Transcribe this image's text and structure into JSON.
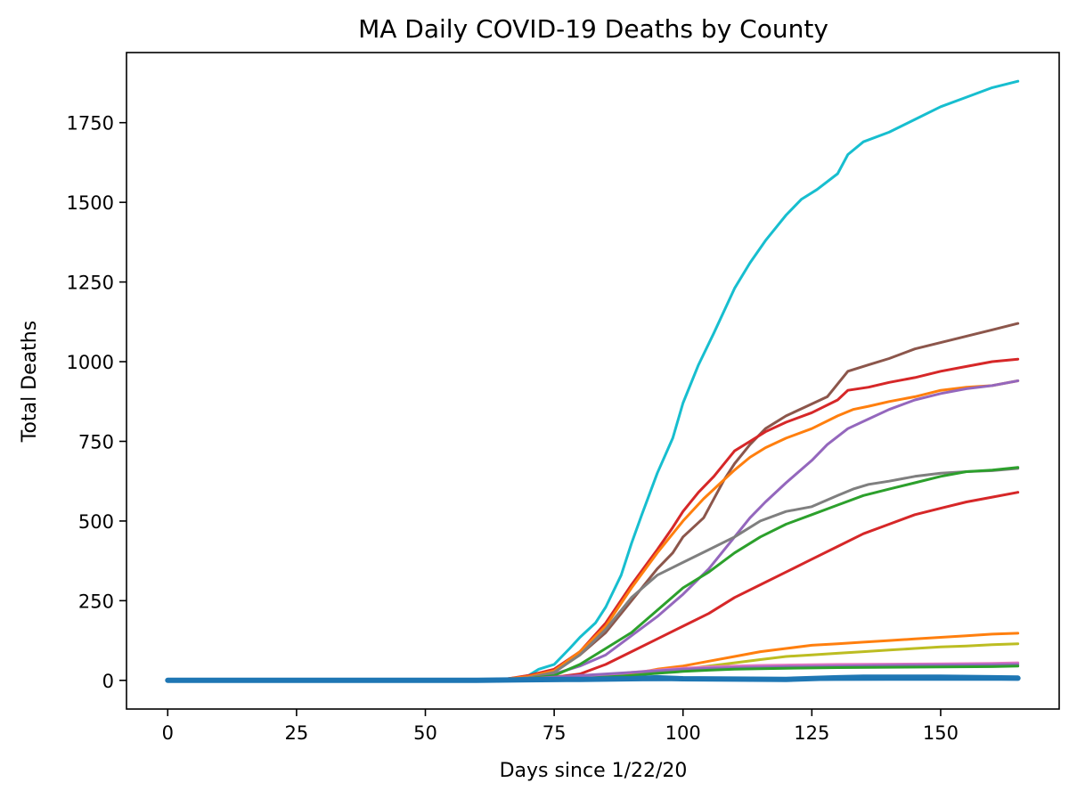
{
  "chart_data": {
    "type": "line",
    "title": "MA Daily COVID-19 Deaths by County",
    "xlabel": "Days since 1/22/20",
    "ylabel": "Total Deaths",
    "xlim": [
      -8,
      173
    ],
    "ylim": [
      -90,
      1970
    ],
    "xticks": [
      0,
      25,
      50,
      75,
      100,
      125,
      150
    ],
    "yticks": [
      0,
      250,
      500,
      750,
      1000,
      1250,
      1500,
      1750
    ],
    "grid": false,
    "legend": "none",
    "series": [
      {
        "color": "#17becf",
        "width": 3,
        "points": [
          [
            0,
            0
          ],
          [
            60,
            0
          ],
          [
            66,
            3
          ],
          [
            70,
            15
          ],
          [
            72,
            35
          ],
          [
            75,
            50
          ],
          [
            78,
            100
          ],
          [
            80,
            135
          ],
          [
            83,
            180
          ],
          [
            85,
            230
          ],
          [
            88,
            330
          ],
          [
            90,
            430
          ],
          [
            92,
            520
          ],
          [
            95,
            650
          ],
          [
            98,
            760
          ],
          [
            100,
            870
          ],
          [
            103,
            990
          ],
          [
            106,
            1090
          ],
          [
            110,
            1230
          ],
          [
            113,
            1310
          ],
          [
            116,
            1380
          ],
          [
            120,
            1460
          ],
          [
            123,
            1510
          ],
          [
            126,
            1540
          ],
          [
            130,
            1590
          ],
          [
            132,
            1650
          ],
          [
            135,
            1690
          ],
          [
            140,
            1720
          ],
          [
            145,
            1760
          ],
          [
            150,
            1800
          ],
          [
            155,
            1830
          ],
          [
            160,
            1860
          ],
          [
            165,
            1880
          ]
        ]
      },
      {
        "color": "#8c564b",
        "width": 3,
        "points": [
          [
            0,
            0
          ],
          [
            60,
            0
          ],
          [
            66,
            5
          ],
          [
            70,
            12
          ],
          [
            75,
            30
          ],
          [
            80,
            80
          ],
          [
            85,
            150
          ],
          [
            90,
            250
          ],
          [
            95,
            350
          ],
          [
            98,
            400
          ],
          [
            100,
            450
          ],
          [
            104,
            510
          ],
          [
            108,
            630
          ],
          [
            110,
            680
          ],
          [
            113,
            740
          ],
          [
            116,
            790
          ],
          [
            120,
            830
          ],
          [
            124,
            860
          ],
          [
            128,
            890
          ],
          [
            130,
            930
          ],
          [
            132,
            970
          ],
          [
            136,
            990
          ],
          [
            140,
            1010
          ],
          [
            145,
            1040
          ],
          [
            150,
            1060
          ],
          [
            155,
            1080
          ],
          [
            160,
            1100
          ],
          [
            165,
            1120
          ]
        ]
      },
      {
        "color": "#d62728",
        "width": 3,
        "points": [
          [
            0,
            0
          ],
          [
            60,
            0
          ],
          [
            66,
            5
          ],
          [
            70,
            15
          ],
          [
            75,
            35
          ],
          [
            80,
            90
          ],
          [
            85,
            180
          ],
          [
            90,
            300
          ],
          [
            95,
            410
          ],
          [
            98,
            480
          ],
          [
            100,
            530
          ],
          [
            103,
            590
          ],
          [
            106,
            640
          ],
          [
            110,
            720
          ],
          [
            113,
            750
          ],
          [
            116,
            780
          ],
          [
            120,
            810
          ],
          [
            125,
            840
          ],
          [
            130,
            880
          ],
          [
            132,
            910
          ],
          [
            136,
            920
          ],
          [
            140,
            935
          ],
          [
            145,
            950
          ],
          [
            150,
            970
          ],
          [
            155,
            985
          ],
          [
            160,
            1000
          ],
          [
            165,
            1008
          ]
        ]
      },
      {
        "color": "#ff7f0e",
        "width": 3,
        "points": [
          [
            0,
            0
          ],
          [
            60,
            0
          ],
          [
            66,
            5
          ],
          [
            70,
            12
          ],
          [
            75,
            30
          ],
          [
            80,
            90
          ],
          [
            85,
            170
          ],
          [
            90,
            290
          ],
          [
            95,
            400
          ],
          [
            100,
            500
          ],
          [
            104,
            570
          ],
          [
            108,
            630
          ],
          [
            110,
            660
          ],
          [
            113,
            700
          ],
          [
            116,
            730
          ],
          [
            120,
            760
          ],
          [
            125,
            790
          ],
          [
            130,
            830
          ],
          [
            133,
            850
          ],
          [
            136,
            860
          ],
          [
            140,
            875
          ],
          [
            145,
            890
          ],
          [
            150,
            910
          ],
          [
            155,
            920
          ],
          [
            160,
            925
          ],
          [
            165,
            940
          ]
        ]
      },
      {
        "color": "#9467bd",
        "width": 3,
        "points": [
          [
            0,
            0
          ],
          [
            60,
            0
          ],
          [
            66,
            3
          ],
          [
            70,
            8
          ],
          [
            75,
            20
          ],
          [
            80,
            45
          ],
          [
            85,
            80
          ],
          [
            90,
            140
          ],
          [
            95,
            200
          ],
          [
            100,
            270
          ],
          [
            105,
            350
          ],
          [
            110,
            450
          ],
          [
            113,
            510
          ],
          [
            116,
            560
          ],
          [
            120,
            620
          ],
          [
            125,
            690
          ],
          [
            128,
            740
          ],
          [
            132,
            790
          ],
          [
            136,
            820
          ],
          [
            140,
            850
          ],
          [
            145,
            880
          ],
          [
            150,
            900
          ],
          [
            155,
            915
          ],
          [
            160,
            925
          ],
          [
            165,
            940
          ]
        ]
      },
      {
        "color": "#7f7f7f",
        "width": 3,
        "points": [
          [
            0,
            0
          ],
          [
            60,
            0
          ],
          [
            66,
            3
          ],
          [
            70,
            8
          ],
          [
            75,
            25
          ],
          [
            80,
            80
          ],
          [
            85,
            160
          ],
          [
            90,
            260
          ],
          [
            95,
            330
          ],
          [
            100,
            370
          ],
          [
            105,
            410
          ],
          [
            110,
            450
          ],
          [
            115,
            500
          ],
          [
            120,
            530
          ],
          [
            125,
            545
          ],
          [
            130,
            580
          ],
          [
            133,
            600
          ],
          [
            136,
            615
          ],
          [
            140,
            625
          ],
          [
            145,
            640
          ],
          [
            150,
            650
          ],
          [
            155,
            655
          ],
          [
            160,
            658
          ],
          [
            165,
            665
          ]
        ]
      },
      {
        "color": "#2ca02c",
        "width": 3,
        "points": [
          [
            0,
            0
          ],
          [
            60,
            0
          ],
          [
            66,
            2
          ],
          [
            70,
            5
          ],
          [
            75,
            15
          ],
          [
            80,
            50
          ],
          [
            85,
            100
          ],
          [
            90,
            150
          ],
          [
            95,
            220
          ],
          [
            100,
            290
          ],
          [
            105,
            340
          ],
          [
            110,
            400
          ],
          [
            115,
            450
          ],
          [
            120,
            490
          ],
          [
            125,
            520
          ],
          [
            130,
            550
          ],
          [
            135,
            580
          ],
          [
            140,
            600
          ],
          [
            145,
            620
          ],
          [
            150,
            640
          ],
          [
            155,
            655
          ],
          [
            160,
            660
          ],
          [
            165,
            668
          ]
        ]
      },
      {
        "color": "#d62728",
        "width": 3,
        "points": [
          [
            0,
            0
          ],
          [
            60,
            0
          ],
          [
            66,
            2
          ],
          [
            70,
            5
          ],
          [
            75,
            10
          ],
          [
            80,
            20
          ],
          [
            85,
            50
          ],
          [
            90,
            90
          ],
          [
            95,
            130
          ],
          [
            100,
            170
          ],
          [
            105,
            210
          ],
          [
            110,
            260
          ],
          [
            115,
            300
          ],
          [
            120,
            340
          ],
          [
            125,
            380
          ],
          [
            130,
            420
          ],
          [
            135,
            460
          ],
          [
            140,
            490
          ],
          [
            145,
            520
          ],
          [
            150,
            540
          ],
          [
            155,
            560
          ],
          [
            160,
            575
          ],
          [
            165,
            590
          ]
        ]
      },
      {
        "color": "#ff7f0e",
        "width": 3,
        "points": [
          [
            0,
            0
          ],
          [
            60,
            0
          ],
          [
            70,
            3
          ],
          [
            80,
            8
          ],
          [
            90,
            20
          ],
          [
            95,
            35
          ],
          [
            100,
            45
          ],
          [
            105,
            60
          ],
          [
            110,
            75
          ],
          [
            115,
            90
          ],
          [
            120,
            100
          ],
          [
            125,
            110
          ],
          [
            130,
            115
          ],
          [
            135,
            120
          ],
          [
            140,
            125
          ],
          [
            145,
            130
          ],
          [
            150,
            135
          ],
          [
            155,
            140
          ],
          [
            160,
            145
          ],
          [
            165,
            148
          ]
        ]
      },
      {
        "color": "#bcbd22",
        "width": 3,
        "points": [
          [
            0,
            0
          ],
          [
            60,
            0
          ],
          [
            70,
            2
          ],
          [
            80,
            6
          ],
          [
            90,
            15
          ],
          [
            95,
            25
          ],
          [
            100,
            35
          ],
          [
            105,
            45
          ],
          [
            110,
            55
          ],
          [
            115,
            65
          ],
          [
            120,
            75
          ],
          [
            125,
            80
          ],
          [
            130,
            85
          ],
          [
            135,
            90
          ],
          [
            140,
            95
          ],
          [
            145,
            100
          ],
          [
            150,
            105
          ],
          [
            155,
            108
          ],
          [
            160,
            112
          ],
          [
            165,
            115
          ]
        ]
      },
      {
        "color": "#e377c2",
        "width": 3,
        "points": [
          [
            0,
            0
          ],
          [
            60,
            0
          ],
          [
            70,
            3
          ],
          [
            80,
            8
          ],
          [
            85,
            15
          ],
          [
            90,
            25
          ],
          [
            95,
            32
          ],
          [
            100,
            38
          ],
          [
            105,
            42
          ],
          [
            110,
            45
          ],
          [
            115,
            47
          ],
          [
            120,
            48
          ],
          [
            130,
            50
          ],
          [
            140,
            51
          ],
          [
            150,
            52
          ],
          [
            160,
            53
          ],
          [
            165,
            55
          ]
        ]
      },
      {
        "color": "#9467bd",
        "width": 3,
        "points": [
          [
            0,
            0
          ],
          [
            60,
            0
          ],
          [
            70,
            5
          ],
          [
            80,
            15
          ],
          [
            90,
            25
          ],
          [
            95,
            30
          ],
          [
            100,
            35
          ],
          [
            105,
            38
          ],
          [
            110,
            40
          ],
          [
            120,
            43
          ],
          [
            130,
            45
          ],
          [
            140,
            47
          ],
          [
            150,
            48
          ],
          [
            160,
            49
          ],
          [
            165,
            50
          ]
        ]
      },
      {
        "color": "#2ca02c",
        "width": 3,
        "points": [
          [
            0,
            0
          ],
          [
            60,
            0
          ],
          [
            70,
            2
          ],
          [
            80,
            6
          ],
          [
            90,
            15
          ],
          [
            95,
            22
          ],
          [
            100,
            28
          ],
          [
            105,
            32
          ],
          [
            110,
            35
          ],
          [
            120,
            38
          ],
          [
            130,
            40
          ],
          [
            140,
            41
          ],
          [
            150,
            42
          ],
          [
            160,
            43
          ],
          [
            165,
            45
          ]
        ]
      },
      {
        "color": "#1f77b4",
        "width": 6,
        "points": [
          [
            0,
            0
          ],
          [
            60,
            0
          ],
          [
            70,
            2
          ],
          [
            80,
            3
          ],
          [
            90,
            5
          ],
          [
            95,
            8
          ],
          [
            100,
            5
          ],
          [
            110,
            4
          ],
          [
            120,
            3
          ],
          [
            130,
            8
          ],
          [
            135,
            10
          ],
          [
            140,
            10
          ],
          [
            150,
            10
          ],
          [
            160,
            8
          ],
          [
            165,
            7
          ]
        ]
      },
      {
        "color": "#1f77b4",
        "width": 3,
        "points": [
          [
            0,
            0
          ],
          [
            70,
            0
          ],
          [
            90,
            1
          ],
          [
            110,
            2
          ],
          [
            140,
            3
          ],
          [
            165,
            3
          ]
        ]
      }
    ]
  }
}
